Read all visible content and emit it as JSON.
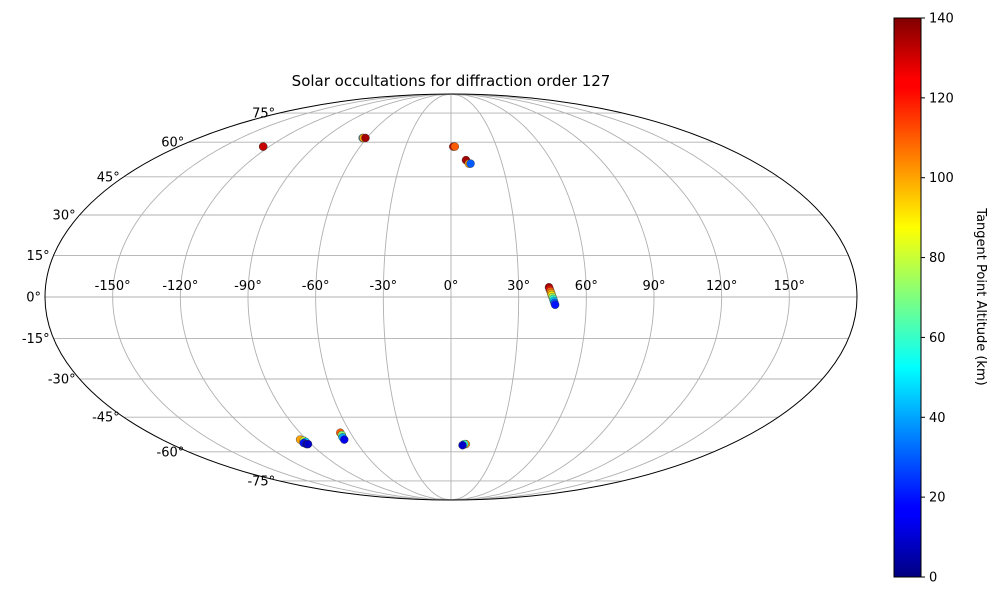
{
  "chart_data": {
    "type": "scatter",
    "projection": "mollweide",
    "title": "Solar occultations for diffraction order 127",
    "xlabel": "",
    "ylabel": "",
    "grid": true,
    "xlim": [
      -180,
      180
    ],
    "ylim": [
      -90,
      90
    ],
    "lon_ticks": [
      -150,
      -120,
      -90,
      -60,
      -30,
      0,
      30,
      60,
      90,
      120,
      150
    ],
    "lon_tick_labels": [
      "-150°",
      "-120°",
      "-90°",
      "-60°",
      "-30°",
      "0°",
      "30°",
      "60°",
      "90°",
      "120°",
      "150°"
    ],
    "lat_ticks": [
      -75,
      -60,
      -45,
      -30,
      -15,
      0,
      15,
      30,
      45,
      60,
      75
    ],
    "lat_tick_labels": [
      "-75°",
      "-60°",
      "-45°",
      "-30°",
      "-15°",
      "0°",
      "15°",
      "30°",
      "45°",
      "60°",
      "75°"
    ],
    "colorbar": {
      "label": "Tangent Point Altitude (km)",
      "range": [
        0,
        140
      ],
      "ticks": [
        0,
        20,
        40,
        60,
        80,
        100,
        120,
        140
      ],
      "tick_labels": [
        "0",
        "20",
        "40",
        "60",
        "80",
        "100",
        "120",
        "140"
      ],
      "colormap": "jet"
    },
    "points": [
      {
        "lon": -124,
        "lat": 58,
        "alt": 138
      },
      {
        "lon": -124,
        "lat": 58,
        "alt": 130
      },
      {
        "lon": -63,
        "lat": 62,
        "alt": 40
      },
      {
        "lon": -62.5,
        "lat": 62,
        "alt": 100
      },
      {
        "lon": -61,
        "lat": 62,
        "alt": 135
      },
      {
        "lon": 1.5,
        "lat": 58,
        "alt": 130
      },
      {
        "lon": 2.5,
        "lat": 58,
        "alt": 110
      },
      {
        "lon": 9,
        "lat": 52,
        "alt": 135
      },
      {
        "lon": 10.5,
        "lat": 50.5,
        "alt": 100
      },
      {
        "lon": 11.5,
        "lat": 50.5,
        "alt": 30
      },
      {
        "lon": 43.5,
        "lat": 3.5,
        "alt": 135
      },
      {
        "lon": 43.8,
        "lat": 2.8,
        "alt": 125
      },
      {
        "lon": 44.1,
        "lat": 2.1,
        "alt": 110
      },
      {
        "lon": 44.4,
        "lat": 1.4,
        "alt": 100
      },
      {
        "lon": 44.7,
        "lat": 0.7,
        "alt": 90
      },
      {
        "lon": 45.0,
        "lat": 0.0,
        "alt": 75
      },
      {
        "lon": 45.3,
        "lat": -0.7,
        "alt": 60
      },
      {
        "lon": 45.6,
        "lat": -1.4,
        "alt": 45
      },
      {
        "lon": 45.9,
        "lat": -2.1,
        "alt": 30
      },
      {
        "lon": 46.2,
        "lat": -2.8,
        "alt": 20
      },
      {
        "lon": -94,
        "lat": -54.5,
        "alt": 100
      },
      {
        "lon": -92.5,
        "lat": -55,
        "alt": 80
      },
      {
        "lon": -92,
        "lat": -55.5,
        "alt": 45
      },
      {
        "lon": -94,
        "lat": -56,
        "alt": 20
      },
      {
        "lon": -93,
        "lat": -56.5,
        "alt": 5
      },
      {
        "lon": -92,
        "lat": -56.5,
        "alt": 10
      },
      {
        "lon": -66,
        "lat": -51.5,
        "alt": 110
      },
      {
        "lon": -66,
        "lat": -52.5,
        "alt": 70
      },
      {
        "lon": -66.5,
        "lat": -53.5,
        "alt": 40
      },
      {
        "lon": -66.5,
        "lat": -54.5,
        "alt": 15
      },
      {
        "lon": 9.5,
        "lat": -56.5,
        "alt": 100
      },
      {
        "lon": 8.5,
        "lat": -56.5,
        "alt": 60
      },
      {
        "lon": 7.5,
        "lat": -57,
        "alt": 10
      }
    ]
  }
}
